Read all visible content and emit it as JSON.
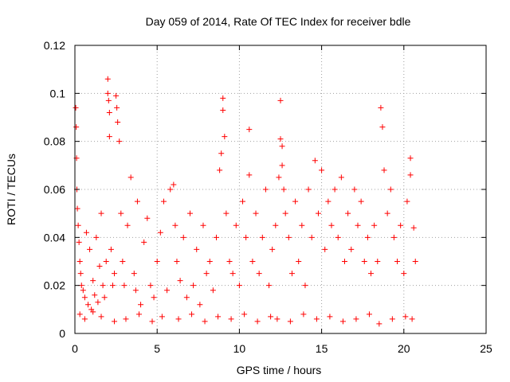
{
  "chart_data": {
    "type": "scatter",
    "title": "Day 059 of 2014, Rate Of TEC Index for receiver bdle",
    "xlabel": "GPS time / hours",
    "ylabel": "ROTI / TECUs",
    "xlim": [
      0,
      25
    ],
    "ylim": [
      0,
      0.12
    ],
    "x_ticks": [
      0,
      5,
      10,
      15,
      20,
      25
    ],
    "x_tick_labels": [
      "0",
      "5",
      "10",
      "15",
      "20",
      "25"
    ],
    "y_ticks": [
      0,
      0.02,
      0.04,
      0.06,
      0.08,
      0.1,
      0.12
    ],
    "y_tick_labels": [
      "0",
      "0.02",
      "0.04",
      "0.06",
      "0.08",
      "0.1",
      "0.12"
    ],
    "grid": true,
    "marker": "+",
    "color": "#ff0000",
    "x": [
      0.05,
      0.08,
      0.1,
      0.12,
      0.15,
      0.2,
      0.25,
      0.3,
      0.35,
      0.4,
      0.5,
      0.6,
      0.7,
      0.8,
      0.9,
      1.0,
      1.1,
      1.2,
      1.3,
      1.4,
      1.5,
      1.6,
      1.7,
      1.8,
      1.9,
      2.0,
      2.0,
      2.05,
      2.1,
      2.1,
      2.2,
      2.3,
      2.4,
      2.5,
      2.55,
      2.6,
      2.7,
      2.8,
      2.9,
      3.0,
      3.2,
      3.4,
      3.6,
      3.7,
      3.8,
      4.0,
      4.2,
      4.4,
      4.6,
      4.8,
      5.0,
      5.2,
      5.4,
      5.6,
      5.8,
      6.0,
      6.1,
      6.2,
      6.4,
      6.6,
      6.8,
      7.0,
      7.2,
      7.4,
      7.6,
      7.8,
      8.0,
      8.2,
      8.4,
      8.6,
      8.8,
      8.9,
      9.0,
      9.0,
      9.1,
      9.2,
      9.4,
      9.6,
      9.8,
      10.0,
      10.2,
      10.4,
      10.6,
      10.6,
      10.8,
      11.0,
      11.2,
      11.4,
      11.6,
      11.8,
      12.0,
      12.2,
      12.4,
      12.5,
      12.5,
      12.6,
      12.6,
      12.7,
      12.8,
      13.0,
      13.2,
      13.4,
      13.6,
      13.8,
      14.0,
      14.2,
      14.4,
      14.6,
      14.8,
      15.0,
      15.2,
      15.4,
      15.6,
      15.8,
      16.0,
      16.2,
      16.4,
      16.6,
      16.8,
      17.0,
      17.2,
      17.4,
      17.6,
      17.8,
      18.0,
      18.2,
      18.4,
      18.6,
      18.7,
      18.8,
      19.0,
      19.2,
      19.4,
      19.6,
      19.8,
      20.0,
      20.2,
      20.4,
      20.4,
      20.6,
      20.7,
      0.3,
      0.6,
      1.1,
      1.6,
      2.4,
      3.1,
      3.9,
      4.7,
      5.3,
      6.3,
      7.1,
      7.9,
      8.7,
      9.5,
      10.3,
      11.1,
      11.9,
      12.3,
      13.1,
      13.9,
      14.7,
      15.5,
      16.3,
      17.1,
      17.9,
      18.5,
      19.3,
      20.1,
      20.5
    ],
    "y": [
      0.094,
      0.086,
      0.073,
      0.06,
      0.052,
      0.045,
      0.038,
      0.03,
      0.025,
      0.02,
      0.018,
      0.015,
      0.042,
      0.012,
      0.035,
      0.01,
      0.022,
      0.016,
      0.04,
      0.013,
      0.028,
      0.05,
      0.02,
      0.015,
      0.03,
      0.106,
      0.1,
      0.097,
      0.092,
      0.082,
      0.035,
      0.02,
      0.025,
      0.099,
      0.094,
      0.088,
      0.08,
      0.05,
      0.03,
      0.02,
      0.045,
      0.065,
      0.025,
      0.018,
      0.055,
      0.012,
      0.038,
      0.048,
      0.02,
      0.015,
      0.03,
      0.042,
      0.055,
      0.018,
      0.06,
      0.062,
      0.045,
      0.03,
      0.022,
      0.04,
      0.015,
      0.05,
      0.02,
      0.035,
      0.012,
      0.045,
      0.025,
      0.03,
      0.018,
      0.04,
      0.068,
      0.075,
      0.098,
      0.093,
      0.082,
      0.05,
      0.03,
      0.025,
      0.045,
      0.02,
      0.055,
      0.04,
      0.085,
      0.066,
      0.03,
      0.05,
      0.025,
      0.04,
      0.06,
      0.02,
      0.035,
      0.045,
      0.065,
      0.097,
      0.081,
      0.078,
      0.07,
      0.06,
      0.05,
      0.04,
      0.025,
      0.055,
      0.03,
      0.045,
      0.02,
      0.06,
      0.04,
      0.072,
      0.05,
      0.068,
      0.035,
      0.055,
      0.045,
      0.06,
      0.04,
      0.065,
      0.03,
      0.05,
      0.035,
      0.06,
      0.045,
      0.055,
      0.03,
      0.04,
      0.025,
      0.045,
      0.03,
      0.094,
      0.086,
      0.068,
      0.05,
      0.06,
      0.04,
      0.03,
      0.045,
      0.025,
      0.055,
      0.073,
      0.066,
      0.044,
      0.03,
      0.008,
      0.006,
      0.009,
      0.007,
      0.005,
      0.006,
      0.008,
      0.005,
      0.007,
      0.006,
      0.008,
      0.005,
      0.007,
      0.006,
      0.008,
      0.005,
      0.007,
      0.006,
      0.005,
      0.008,
      0.006,
      0.007,
      0.005,
      0.006,
      0.008,
      0.004,
      0.006,
      0.007,
      0.006
    ]
  }
}
